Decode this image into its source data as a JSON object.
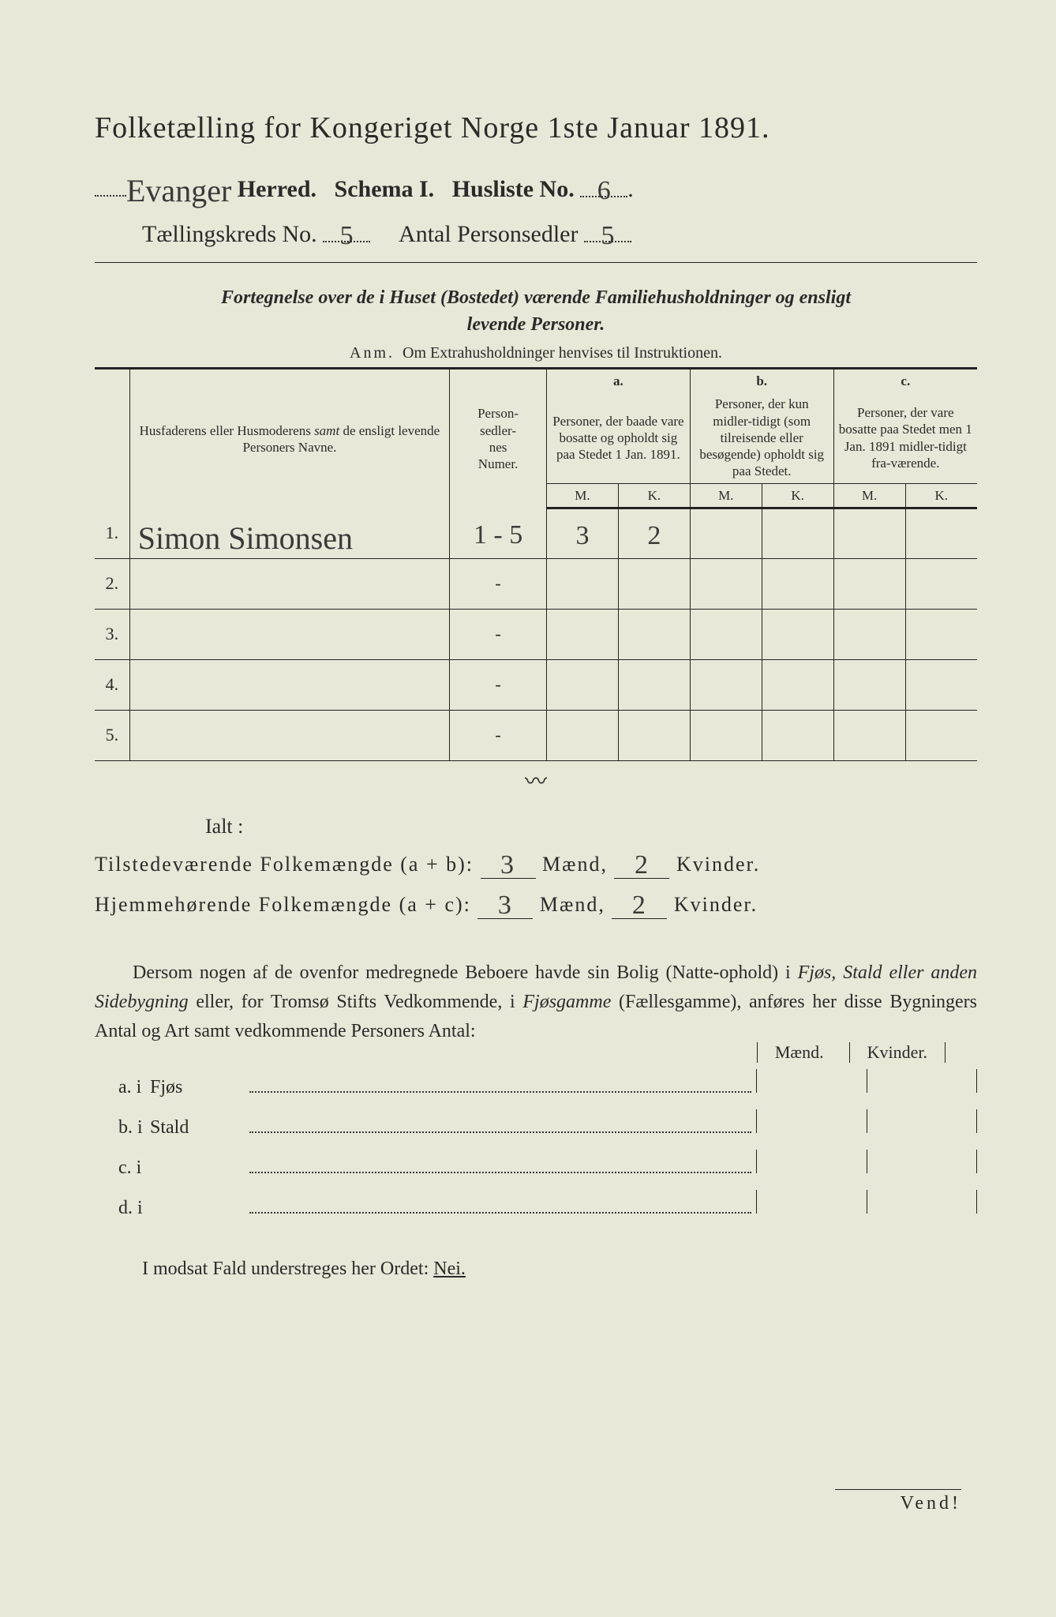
{
  "title": "Folketælling for Kongeriget Norge 1ste Januar 1891.",
  "header": {
    "herred_value": "Evanger",
    "herred_label": "Herred.",
    "schema_label": "Schema I.",
    "husliste_label": "Husliste No.",
    "husliste_value": "6",
    "kreds_label": "Tællingskreds No.",
    "kreds_value": "5",
    "personsedler_label": "Antal Personsedler",
    "personsedler_value": "5"
  },
  "fortegnelse_line1": "Fortegnelse over de i Huset (Bostedet) værende Familiehusholdninger og ensligt",
  "fortegnelse_line2": "levende Personer.",
  "anm": "Anm.  Om Extrahusholdninger henvises til Instruktionen.",
  "table": {
    "col_names": "Husfaderens eller Husmoderens samt de ensligt levende Personers Navne.",
    "col_pers": "Person-\nsedler-\nnes\nNumer.",
    "col_a_label": "a.",
    "col_a": "Personer, der baade vare bosatte og opholdt sig paa Stedet 1 Jan. 1891.",
    "col_b_label": "b.",
    "col_b": "Personer, der kun midler-tidigt (som tilreisende eller besøgende) opholdt sig paa Stedet.",
    "col_c_label": "c.",
    "col_c": "Personer, der vare bosatte paa Stedet men 1 Jan. 1891 midler-tidigt fra-værende.",
    "mk_M": "M.",
    "mk_K": "K.",
    "rows": [
      {
        "n": "1.",
        "name": "Simon Simonsen",
        "pers": "1 - 5",
        "aM": "3",
        "aK": "2",
        "bM": "",
        "bK": "",
        "cM": "",
        "cK": ""
      },
      {
        "n": "2.",
        "name": "",
        "pers": "-",
        "aM": "",
        "aK": "",
        "bM": "",
        "bK": "",
        "cM": "",
        "cK": ""
      },
      {
        "n": "3.",
        "name": "",
        "pers": "-",
        "aM": "",
        "aK": "",
        "bM": "",
        "bK": "",
        "cM": "",
        "cK": ""
      },
      {
        "n": "4.",
        "name": "",
        "pers": "-",
        "aM": "",
        "aK": "",
        "bM": "",
        "bK": "",
        "cM": "",
        "cK": ""
      },
      {
        "n": "5.",
        "name": "",
        "pers": "-",
        "aM": "",
        "aK": "",
        "bM": "",
        "bK": "",
        "cM": "",
        "cK": ""
      }
    ]
  },
  "ialt": "Ialt :",
  "summary": {
    "line1_label": "Tilstedeværende Folkemængde (a + b):",
    "line2_label": "Hjemmehørende Folkemængde (a + c):",
    "maend": "Mænd,",
    "kvinder": "Kvinder.",
    "l1_m": "3",
    "l1_k": "2",
    "l2_m": "3",
    "l2_k": "2"
  },
  "para": "Dersom nogen af de ovenfor medregnede Beboere havde sin Bolig (Natte-ophold) i Fjøs, Stald eller anden Sidebygning eller, for Tromsø Stifts Vedkommende, i Fjøsgamme (Fællesgamme), anføres her disse Bygningers Antal og Art samt vedkommende Personers Antal:",
  "side_items": {
    "m_label": "Mænd.",
    "k_label": "Kvinder.",
    "rows": [
      {
        "lbl": "a.  i",
        "name": "Fjøs"
      },
      {
        "lbl": "b.  i",
        "name": "Stald"
      },
      {
        "lbl": "c.  i",
        "name": ""
      },
      {
        "lbl": "d.  i",
        "name": ""
      }
    ]
  },
  "modsat": "I modsat Fald understreges her Ordet:",
  "nei": "Nei.",
  "vend": "Vend!",
  "colors": {
    "background": "#e8e8d8",
    "ink": "#2a2a2a",
    "rule": "#222222"
  }
}
